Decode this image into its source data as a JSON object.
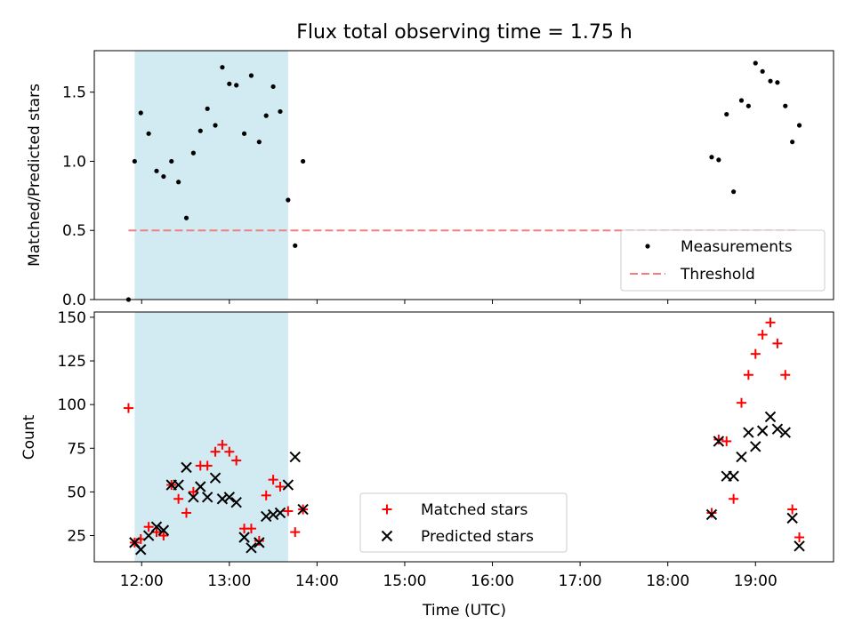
{
  "chart_data": {
    "title": "Flux total observing time = 1.75 h",
    "xlabel": "Time (UTC)",
    "x_ticks": [
      {
        "value": 12.0,
        "label": "12:00"
      },
      {
        "value": 13.0,
        "label": "13:00"
      },
      {
        "value": 14.0,
        "label": "14:00"
      },
      {
        "value": 15.0,
        "label": "15:00"
      },
      {
        "value": 16.0,
        "label": "16:00"
      },
      {
        "value": 17.0,
        "label": "17:00"
      },
      {
        "value": 18.0,
        "label": "18:00"
      },
      {
        "value": 19.0,
        "label": "19:00"
      }
    ],
    "xlim": [
      11.46,
      19.89
    ],
    "highlight_span": {
      "start": 11.92,
      "end": 13.67,
      "color": "#add8e6"
    },
    "top": {
      "type": "scatter",
      "ylabel": "Matched/Predicted stars",
      "ylim": [
        0.0,
        1.8
      ],
      "y_ticks": [
        {
          "value": 0.0,
          "label": "0.0"
        },
        {
          "value": 0.5,
          "label": "0.5"
        },
        {
          "value": 1.0,
          "label": "1.0"
        },
        {
          "value": 1.5,
          "label": "1.5"
        }
      ],
      "measurements": {
        "name": "Measurements",
        "color": "#000000",
        "x": [
          11.85,
          11.92,
          11.99,
          12.08,
          12.17,
          12.25,
          12.34,
          12.42,
          12.51,
          12.59,
          12.67,
          12.75,
          12.84,
          12.92,
          13.0,
          13.08,
          13.17,
          13.25,
          13.34,
          13.42,
          13.5,
          13.58,
          13.67,
          13.75,
          13.84,
          18.5,
          18.58,
          18.67,
          18.75,
          18.84,
          18.92,
          19.0,
          19.08,
          19.17,
          19.25,
          19.34,
          19.42,
          19.5
        ],
        "y": [
          0.0,
          1.0,
          1.35,
          1.2,
          0.93,
          0.89,
          1.0,
          0.85,
          0.59,
          1.06,
          1.22,
          1.38,
          1.26,
          1.68,
          1.56,
          1.55,
          1.2,
          1.62,
          1.14,
          1.33,
          1.54,
          1.36,
          0.72,
          0.39,
          1.0,
          1.03,
          1.01,
          1.34,
          0.78,
          1.44,
          1.4,
          1.71,
          1.65,
          1.58,
          1.57,
          1.4,
          1.14,
          1.26
        ]
      },
      "threshold": {
        "name": "Threshold",
        "color": "#f08080",
        "value": 0.5,
        "x_range": [
          11.85,
          19.5
        ]
      },
      "legend_loc": "lower-right"
    },
    "bottom": {
      "type": "scatter",
      "ylabel": "Count",
      "ylim": [
        10,
        153
      ],
      "y_ticks": [
        {
          "value": 25,
          "label": "25"
        },
        {
          "value": 50,
          "label": "50"
        },
        {
          "value": 75,
          "label": "75"
        },
        {
          "value": 100,
          "label": "100"
        },
        {
          "value": 125,
          "label": "125"
        },
        {
          "value": 150,
          "label": "150"
        }
      ],
      "series": [
        {
          "name": "Matched stars",
          "marker": "plus",
          "color": "#ff0000",
          "x": [
            11.85,
            11.92,
            11.99,
            12.08,
            12.17,
            12.25,
            12.34,
            12.42,
            12.51,
            12.59,
            12.67,
            12.75,
            12.84,
            12.92,
            13.0,
            13.08,
            13.17,
            13.25,
            13.34,
            13.42,
            13.5,
            13.58,
            13.67,
            13.75,
            13.84,
            18.5,
            18.58,
            18.67,
            18.75,
            18.84,
            18.92,
            19.0,
            19.08,
            19.17,
            19.25,
            19.34,
            19.42,
            19.5
          ],
          "y": [
            98,
            21,
            23,
            30,
            27,
            25,
            54,
            46,
            38,
            50,
            65,
            65,
            73,
            77,
            73,
            68,
            29,
            29,
            22,
            48,
            57,
            53,
            39,
            27,
            40,
            38,
            80,
            79,
            46,
            101,
            117,
            129,
            140,
            147,
            135,
            117,
            40,
            24
          ]
        },
        {
          "name": "Predicted stars",
          "marker": "x",
          "color": "#000000",
          "x": [
            11.92,
            11.99,
            12.08,
            12.17,
            12.25,
            12.34,
            12.42,
            12.51,
            12.59,
            12.67,
            12.75,
            12.84,
            12.92,
            13.0,
            13.08,
            13.17,
            13.25,
            13.34,
            13.42,
            13.5,
            13.58,
            13.67,
            13.75,
            13.84,
            18.5,
            18.58,
            18.67,
            18.75,
            18.84,
            18.92,
            19.0,
            19.08,
            19.17,
            19.25,
            19.34,
            19.42,
            19.5
          ],
          "y": [
            21,
            17,
            25,
            30,
            28,
            54,
            54,
            64,
            47,
            53,
            47,
            58,
            46,
            47,
            44,
            24,
            18,
            21,
            36,
            37,
            38,
            54,
            70,
            40,
            37,
            79,
            59,
            59,
            70,
            84,
            76,
            85,
            93,
            86,
            84,
            35,
            19
          ]
        }
      ],
      "legend_loc": "lower-center"
    }
  }
}
